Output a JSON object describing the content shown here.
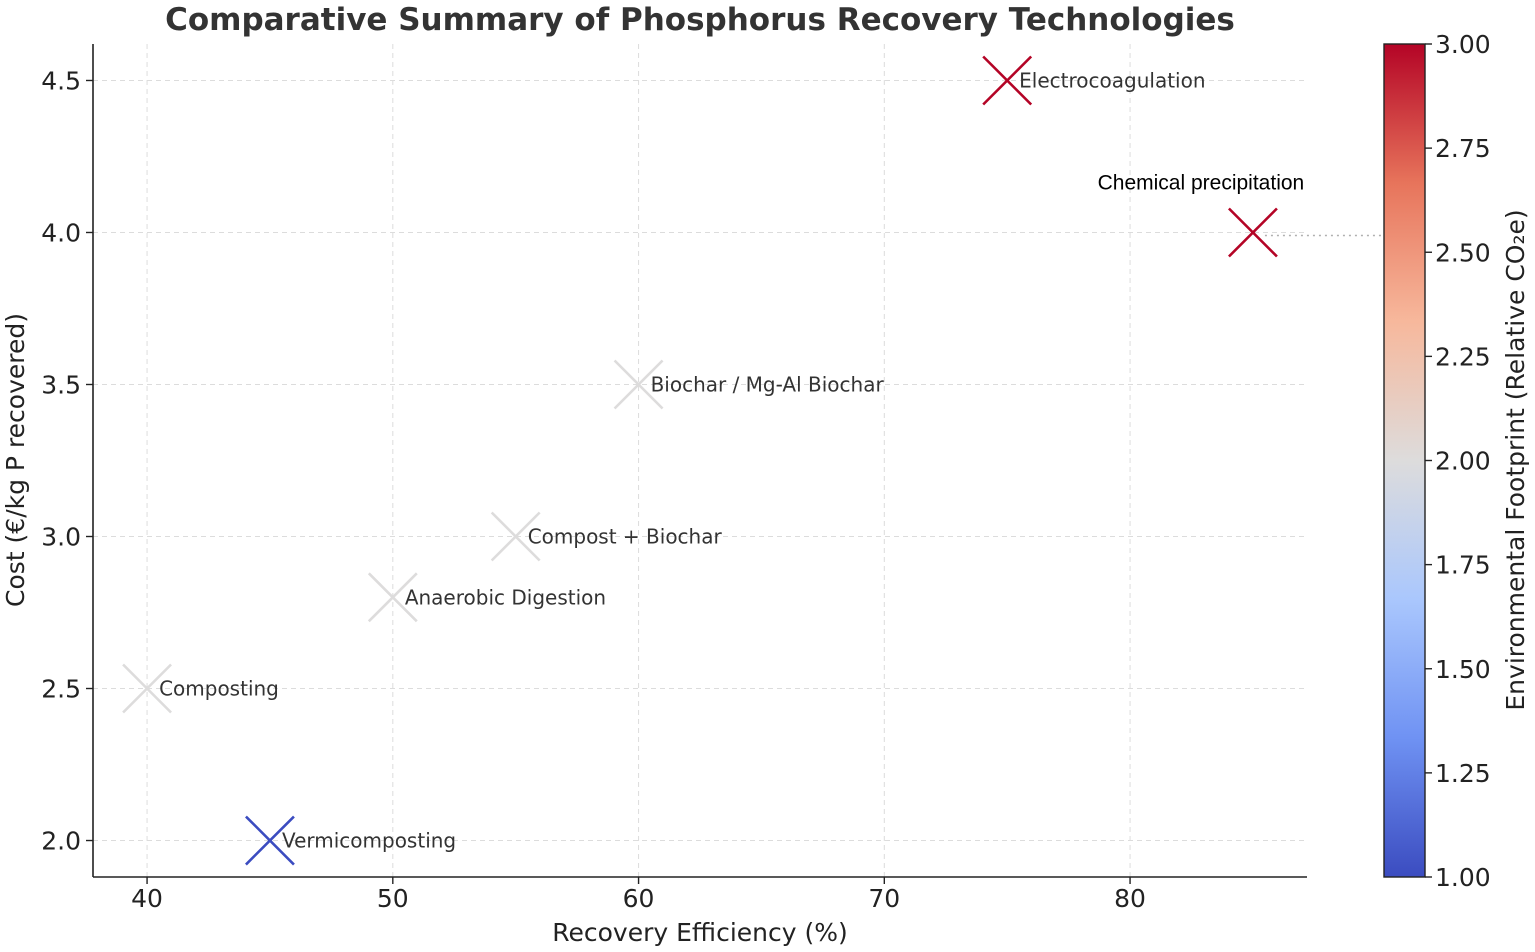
{
  "chart_data": {
    "type": "scatter",
    "title": "Comparative Summary of Phosphorus Recovery Technologies",
    "xlabel": "Recovery Efficiency (%)",
    "ylabel": "Cost (€/kg P recovered)",
    "xlim": [
      37.8,
      87.2
    ],
    "ylim": [
      1.88,
      4.62
    ],
    "xticks": [
      40,
      50,
      60,
      70,
      80
    ],
    "yticks": [
      2.0,
      2.5,
      3.0,
      3.5,
      4.0,
      4.5
    ],
    "grid": true,
    "marker": "x",
    "colorbar": {
      "label": "Environmental Footprint (Relative CO₂e)",
      "range": [
        1.0,
        3.0
      ],
      "ticks": [
        1.0,
        1.25,
        1.5,
        1.75,
        2.0,
        2.25,
        2.5,
        2.75,
        3.0
      ],
      "colormap": "coolwarm",
      "colors": [
        "#3b4cc0",
        "#6f92f3",
        "#aac7fd",
        "#dddcdc",
        "#f7b89c",
        "#e7745b",
        "#b40426"
      ]
    },
    "points": [
      {
        "name": "Composting",
        "x": 40,
        "y": 2.5,
        "c": 2.0
      },
      {
        "name": "Vermicomposting",
        "x": 45,
        "y": 2.0,
        "c": 1.0
      },
      {
        "name": "Anaerobic Digestion",
        "x": 50,
        "y": 2.8,
        "c": 2.0
      },
      {
        "name": "Compost + Biochar",
        "x": 55,
        "y": 3.0,
        "c": 2.0
      },
      {
        "name": "Biochar / Mg-Al Biochar",
        "x": 60,
        "y": 3.5,
        "c": 2.0
      },
      {
        "name": "Electrocoagulation",
        "x": 75,
        "y": 4.5,
        "c": 3.0
      },
      {
        "name": "Chemical precipitation",
        "x": 85,
        "y": 4.0,
        "c": 3.0
      }
    ]
  }
}
